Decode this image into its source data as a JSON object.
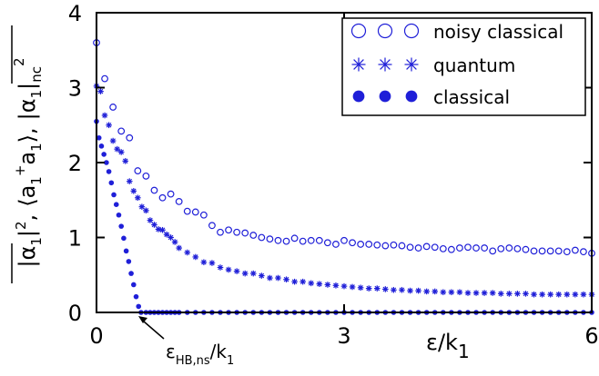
{
  "chart_data": {
    "type": "scatter",
    "xlabel": "ε/k",
    "xlabel_sub": "1",
    "ylabel_parts": {
      "a": "|α",
      "a_sub": "1",
      "a_end": "|",
      "a_sup": "2",
      "comma1": ",",
      "b": "⟨a",
      "b_sub1": "1",
      "b_sup": "+",
      "b_mid": "a",
      "b_sub2": "1",
      "b_end": "⟩,",
      "c": "|α",
      "c_sub": "1",
      "c_end": "|",
      "c_sub2": "nc",
      "c_sup": "2"
    },
    "xlim": [
      0,
      6
    ],
    "ylim": [
      0,
      4
    ],
    "xticks": [
      0,
      3,
      6
    ],
    "xtick_labels": [
      "0",
      "3",
      "6"
    ],
    "yticks": [
      0,
      1,
      2,
      3,
      4
    ],
    "ytick_labels": [
      "0",
      "1",
      "2",
      "3",
      "4"
    ],
    "grid": false,
    "legend_position": "top-right",
    "annotation": {
      "text": "ε",
      "sub": "HB,ns",
      "tail": "/k",
      "tail_sub": "1",
      "x": 0.54
    },
    "series": [
      {
        "name": "noisy classical",
        "marker": "circle-open",
        "color": "#1f1fd8",
        "x": [
          0.0,
          0.1,
          0.2,
          0.3,
          0.4,
          0.5,
          0.6,
          0.7,
          0.8,
          0.9,
          1.0,
          1.1,
          1.2,
          1.3,
          1.4,
          1.5,
          1.6,
          1.7,
          1.8,
          1.9,
          2.0,
          2.1,
          2.2,
          2.3,
          2.4,
          2.5,
          2.6,
          2.7,
          2.8,
          2.9,
          3.0,
          3.1,
          3.2,
          3.3,
          3.4,
          3.5,
          3.6,
          3.7,
          3.8,
          3.9,
          4.0,
          4.1,
          4.2,
          4.3,
          4.4,
          4.5,
          4.6,
          4.7,
          4.8,
          4.9,
          5.0,
          5.1,
          5.2,
          5.3,
          5.4,
          5.5,
          5.6,
          5.7,
          5.8,
          5.9,
          6.0
        ],
        "y": [
          3.6,
          3.12,
          2.74,
          2.42,
          2.33,
          1.89,
          1.82,
          1.63,
          1.53,
          1.58,
          1.48,
          1.35,
          1.34,
          1.3,
          1.16,
          1.07,
          1.1,
          1.07,
          1.06,
          1.03,
          1.0,
          0.98,
          0.96,
          0.95,
          0.99,
          0.95,
          0.96,
          0.96,
          0.93,
          0.91,
          0.96,
          0.93,
          0.91,
          0.91,
          0.9,
          0.89,
          0.9,
          0.89,
          0.87,
          0.86,
          0.88,
          0.87,
          0.85,
          0.84,
          0.86,
          0.87,
          0.86,
          0.86,
          0.82,
          0.85,
          0.86,
          0.85,
          0.84,
          0.82,
          0.82,
          0.82,
          0.82,
          0.81,
          0.83,
          0.81,
          0.79
        ]
      },
      {
        "name": "quantum",
        "marker": "asterisk",
        "color": "#1f1fd8",
        "x": [
          0.0,
          0.05,
          0.1,
          0.15,
          0.2,
          0.25,
          0.3,
          0.35,
          0.4,
          0.45,
          0.5,
          0.55,
          0.6,
          0.65,
          0.7,
          0.75,
          0.8,
          0.85,
          0.9,
          0.95,
          1.0,
          1.1,
          1.2,
          1.3,
          1.4,
          1.5,
          1.6,
          1.7,
          1.8,
          1.9,
          2.0,
          2.1,
          2.2,
          2.3,
          2.4,
          2.5,
          2.6,
          2.7,
          2.8,
          2.9,
          3.0,
          3.1,
          3.2,
          3.3,
          3.4,
          3.5,
          3.6,
          3.7,
          3.8,
          3.9,
          4.0,
          4.1,
          4.2,
          4.3,
          4.4,
          4.5,
          4.6,
          4.7,
          4.8,
          4.9,
          5.0,
          5.1,
          5.2,
          5.3,
          5.4,
          5.5,
          5.6,
          5.7,
          5.8,
          5.9,
          6.0
        ],
        "y": [
          3.02,
          2.95,
          2.63,
          2.5,
          2.29,
          2.18,
          2.14,
          2.02,
          1.75,
          1.62,
          1.53,
          1.41,
          1.36,
          1.23,
          1.17,
          1.11,
          1.1,
          1.04,
          1.0,
          0.94,
          0.86,
          0.8,
          0.74,
          0.67,
          0.66,
          0.6,
          0.57,
          0.55,
          0.52,
          0.52,
          0.49,
          0.46,
          0.46,
          0.44,
          0.41,
          0.41,
          0.39,
          0.38,
          0.37,
          0.36,
          0.35,
          0.34,
          0.33,
          0.32,
          0.32,
          0.31,
          0.3,
          0.3,
          0.29,
          0.29,
          0.28,
          0.28,
          0.27,
          0.27,
          0.27,
          0.26,
          0.26,
          0.26,
          0.26,
          0.25,
          0.25,
          0.25,
          0.25,
          0.24,
          0.24,
          0.24,
          0.24,
          0.24,
          0.24,
          0.24,
          0.24
        ]
      },
      {
        "name": "classical",
        "marker": "circle-filled",
        "color": "#1f1fd8",
        "x": [
          0.0,
          0.03,
          0.06,
          0.09,
          0.12,
          0.15,
          0.18,
          0.21,
          0.24,
          0.27,
          0.3,
          0.33,
          0.36,
          0.39,
          0.42,
          0.45,
          0.48,
          0.51,
          0.54,
          0.6,
          0.65,
          0.7,
          0.75,
          0.8,
          0.85,
          0.9,
          0.95,
          1.0,
          1.1,
          1.2,
          1.3,
          1.4,
          1.5,
          1.6,
          1.7,
          1.8,
          1.9,
          2.0,
          2.1,
          2.2,
          2.3,
          2.4,
          2.5,
          2.6,
          2.7,
          2.8,
          2.9,
          3.0,
          3.1,
          3.2,
          3.3,
          3.4,
          3.5,
          3.6,
          3.7,
          3.8,
          3.9,
          4.0,
          4.1,
          4.2,
          4.3,
          4.4,
          4.5,
          4.6,
          4.7,
          4.8,
          4.9,
          5.0,
          5.1,
          5.2,
          5.3,
          5.4,
          5.5,
          5.6,
          5.7,
          5.8,
          5.9,
          6.0
        ],
        "y": [
          2.55,
          2.33,
          2.22,
          2.11,
          2.0,
          1.88,
          1.73,
          1.57,
          1.44,
          1.3,
          1.15,
          0.99,
          0.82,
          0.68,
          0.52,
          0.37,
          0.21,
          0.08,
          0.0,
          0.0,
          0.0,
          0.0,
          0.0,
          0.0,
          0.0,
          0.0,
          0.0,
          0.0,
          0.0,
          0.0,
          0.0,
          0.0,
          0.0,
          0.0,
          0.0,
          0.0,
          0.0,
          0.0,
          0.0,
          0.0,
          0.0,
          0.0,
          0.0,
          0.0,
          0.0,
          0.0,
          0.0,
          0.0,
          0.0,
          0.0,
          0.0,
          0.0,
          0.0,
          0.0,
          0.0,
          0.0,
          0.0,
          0.0,
          0.0,
          0.0,
          0.0,
          0.0,
          0.0,
          0.0,
          0.0,
          0.0,
          0.0,
          0.0,
          0.0,
          0.0,
          0.0,
          0.0,
          0.0,
          0.0,
          0.0,
          0.0,
          0.0,
          0.0
        ]
      }
    ]
  }
}
